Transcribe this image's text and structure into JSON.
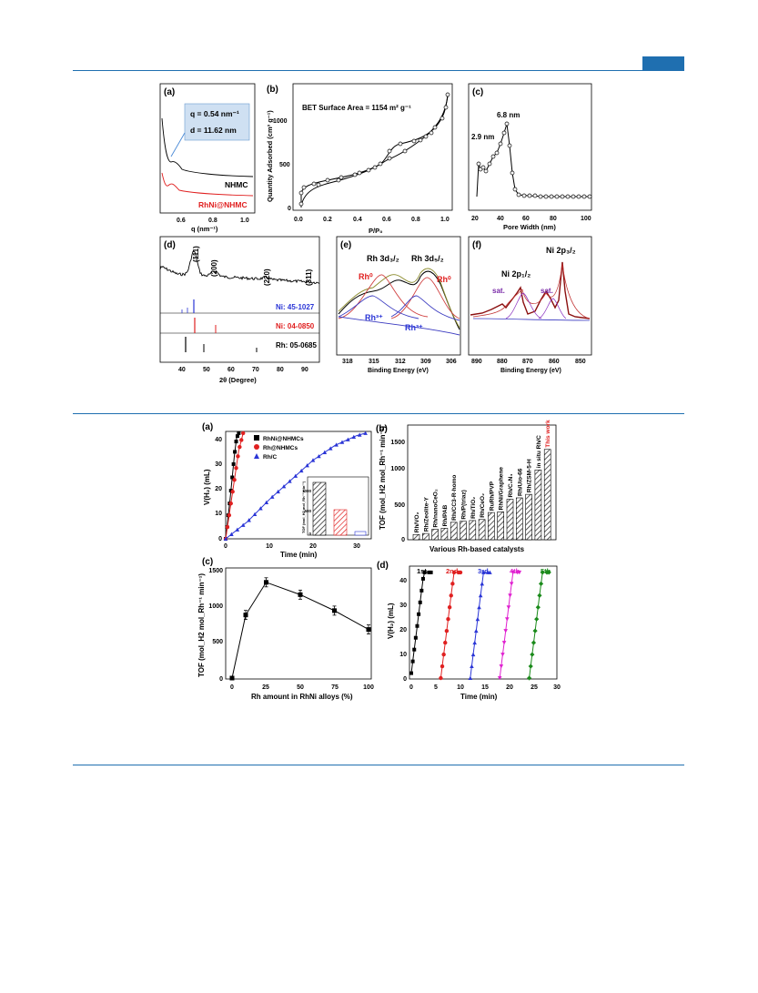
{
  "figure1": {
    "a": {
      "label": "(a)",
      "q_text": "q = 0.54 nm⁻¹",
      "d_text": "d = 11.62 nm",
      "curve1": "NHMC",
      "curve2": "RhNi@NHMC",
      "xticks": [
        "0.6",
        "0.8",
        "1.0"
      ],
      "xlabel": "q (nm⁻¹)"
    },
    "b": {
      "label": "(b)",
      "bet": "BET Surface Area = 1154 m² g⁻¹",
      "ylabel": "Quantity Adsorbed (cm³ g⁻¹)",
      "xlabel": "P/P₀",
      "xticks": [
        "0.0",
        "0.2",
        "0.4",
        "0.6",
        "0.8",
        "1.0"
      ],
      "yticks": [
        "0",
        "500",
        "1000"
      ]
    },
    "c": {
      "label": "(c)",
      "peak1": "2.9 nm",
      "peak2": "6.8 nm",
      "xlabel": "Pore Width (nm)",
      "xticks": [
        "20",
        "40",
        "60",
        "80",
        "100"
      ]
    },
    "d": {
      "label": "(d)",
      "peaks": [
        "(111)",
        "(200)",
        "(220)",
        "(311)"
      ],
      "refs": [
        "Ni: 45-1027",
        "Ni: 04-0850",
        "Rh: 05-0685"
      ],
      "xlabel": "2θ (Degree)",
      "xticks": [
        "40",
        "50",
        "60",
        "70",
        "80",
        "90"
      ]
    },
    "e": {
      "label": "(e)",
      "t1": "Rh 3d₃/₂",
      "t2": "Rh 3d₅/₂",
      "rh0": "Rh⁰",
      "rh3": "Rh³⁺",
      "xlabel": "Binding Energy (eV)",
      "xticks": [
        "318",
        "315",
        "312",
        "309",
        "306"
      ]
    },
    "f": {
      "label": "(f)",
      "t1": "Ni 2p₁/₂",
      "t2": "Ni 2p₃/₂",
      "sat": "sat.",
      "xlabel": "Binding Energy (eV)",
      "xticks": [
        "890",
        "880",
        "870",
        "860",
        "850"
      ]
    }
  },
  "figure2": {
    "a": {
      "label": "(a)",
      "ylabel": "V(H₂) (mL)",
      "xlabel": "Time (min)",
      "legend": [
        "RhNi@NHMCs",
        "Rh@NHMCs",
        "Rh/C"
      ],
      "xticks": [
        "0",
        "10",
        "20",
        "30"
      ],
      "yticks": [
        "0",
        "10",
        "20",
        "30",
        "40"
      ],
      "inset_ylabel": "TOF (mol_H2 mol_Rh⁻¹ min⁻¹)",
      "inset_yticks": [
        "0",
        "500",
        "1000"
      ]
    },
    "b": {
      "label": "(b)",
      "ylabel": "TOF (mol_H2 mol_Rh⁻¹ min⁻¹)",
      "xlabel": "Various Rh-based catalysts",
      "yticks": [
        "0",
        "500",
        "1000",
        "1500"
      ],
      "catalysts": [
        "Rh/VO₂",
        "Rh/Zeolite-Y",
        "Rh/nanoCeO₂",
        "Rh/PAB",
        "Rh/CC3-R-homo",
        "Rh/P(triaz)",
        "Rh/TiO₂",
        "Rh/CeO₂",
        "RuRh/PVP",
        "RhNi/Graphene",
        "Rh/C₃N₄",
        "Rh/Uio-66",
        "Rh/ZSM-5-H",
        "in situ Rh/C",
        "This work"
      ],
      "values": [
        75,
        90,
        150,
        165,
        250,
        265,
        275,
        290,
        390,
        400,
        580,
        600,
        650,
        1000,
        1294
      ]
    },
    "c": {
      "label": "(c)",
      "ylabel": "TOF (mol_H2 mol_Rh⁻¹ min⁻¹)",
      "xlabel": "Rh amount in RhNi alloys (%)",
      "xticks": [
        "0",
        "25",
        "50",
        "75",
        "100"
      ],
      "yticks": [
        "0",
        "500",
        "1000",
        "1500"
      ],
      "x": [
        0,
        10,
        25,
        50,
        75,
        100
      ],
      "y": [
        0,
        870,
        1320,
        1150,
        930,
        670
      ]
    },
    "d": {
      "label": "(d)",
      "ylabel": "V(H₂) (mL)",
      "xlabel": "Time (min)",
      "runs": [
        "1st",
        "2nd",
        "3rd",
        "4th",
        "5th"
      ],
      "xticks": [
        "0",
        "5",
        "10",
        "15",
        "20",
        "25",
        "30"
      ],
      "yticks": [
        "0",
        "10",
        "20",
        "30",
        "40"
      ]
    }
  },
  "colors": {
    "rule": "#1f6fb0",
    "black": "#000000",
    "red": "#e02020",
    "blue": "#2a35d6",
    "magenta": "#e020d0",
    "green": "#1a8a1a"
  },
  "chart_data": [
    {
      "type": "line",
      "title": "",
      "xlabel": "Time (min)",
      "ylabel": "V(H2) (mL)",
      "series": [
        {
          "name": "RhNi@NHMCs",
          "x": [
            0,
            0.5,
            1,
            1.5,
            2,
            2.5,
            3
          ],
          "values": [
            0,
            8,
            16,
            25,
            34,
            41,
            43
          ]
        },
        {
          "name": "Rh@NHMCs",
          "x": [
            0,
            1,
            2,
            3,
            4
          ],
          "values": [
            0,
            12,
            24,
            36,
            43
          ]
        },
        {
          "name": "Rh/C",
          "x": [
            0,
            5,
            10,
            15,
            20,
            25,
            30,
            32
          ],
          "values": [
            0,
            7,
            16,
            24,
            32,
            38,
            42,
            43
          ]
        }
      ]
    },
    {
      "type": "bar",
      "title": "",
      "xlabel": "Various Rh-based catalysts",
      "ylabel": "TOF",
      "categories": [
        "Rh/VO2",
        "Rh/Zeolite-Y",
        "Rh/nanoCeO2",
        "Rh/PAB",
        "Rh/CC3-R-homo",
        "Rh/P(triaz)",
        "Rh/TiO2",
        "Rh/CeO2",
        "RuRh/PVP",
        "RhNi/Graphene",
        "Rh/C3N4",
        "Rh/Uio-66",
        "Rh/ZSM-5-H",
        "in situ Rh/C",
        "This work"
      ],
      "values": [
        75,
        90,
        150,
        165,
        250,
        265,
        275,
        290,
        390,
        400,
        580,
        600,
        650,
        1000,
        1294
      ]
    },
    {
      "type": "line",
      "title": "",
      "xlabel": "Rh amount in RhNi alloys (%)",
      "ylabel": "TOF",
      "x": [
        0,
        10,
        25,
        50,
        75,
        100
      ],
      "values": [
        0,
        870,
        1320,
        1150,
        930,
        670
      ]
    }
  ]
}
